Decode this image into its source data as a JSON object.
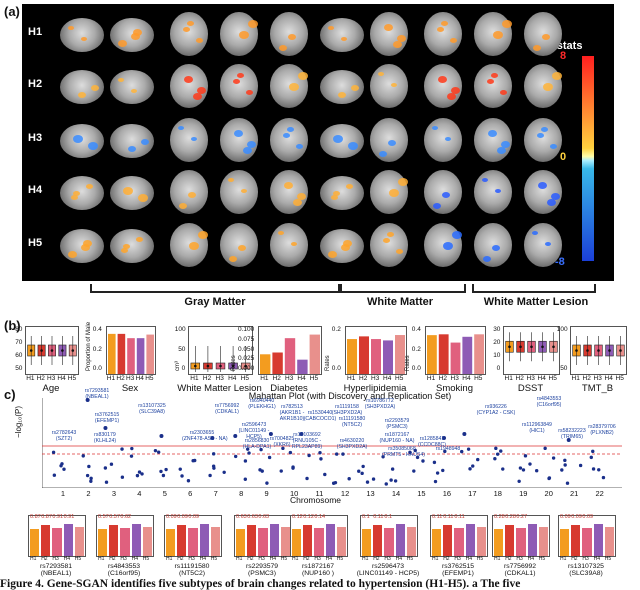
{
  "panel_labels": {
    "a": "(a)",
    "b": "(b)",
    "c": "c)"
  },
  "panel_a": {
    "rows": [
      "H1",
      "H2",
      "H3",
      "H4",
      "H5"
    ],
    "colorbar": {
      "title": "T-stats",
      "max": "8",
      "mid": "0",
      "min": "-8",
      "colors": [
        "#ff1f1f",
        "#ffd23f",
        "#38b8e8",
        "#1b3fd8"
      ]
    },
    "regions": [
      "Gray Matter",
      "White Matter",
      "White Matter Lesion"
    ]
  },
  "panel_b": {
    "group_ticks": [
      "H1",
      "H2",
      "H3",
      "H4",
      "H5"
    ],
    "plots": [
      {
        "label": "Age",
        "kind": "box",
        "yticks": [
          "50",
          "60",
          "70",
          "80"
        ],
        "ylabel": ""
      },
      {
        "label": "Sex",
        "kind": "bar",
        "yticks": [
          "0.0",
          "0.2",
          "0.4"
        ],
        "ylabel": "Proportion of Male"
      },
      {
        "label": "White Matter Lesion",
        "kind": "box",
        "yticks": [
          "0",
          "50",
          "100"
        ],
        "ylabel": "cm³"
      },
      {
        "label": "Diabetes",
        "kind": "bar",
        "yticks": [
          "0.000",
          "0.025",
          "0.050",
          "0.075",
          "0.100"
        ],
        "ylabel": "Rates"
      },
      {
        "label": "Hyperlipidemia",
        "kind": "bar",
        "yticks": [
          "0.0",
          "0.2"
        ],
        "ylabel": "Rates"
      },
      {
        "label": "Smoking",
        "kind": "bar",
        "yticks": [
          "0.0",
          "0.2",
          "0.4"
        ],
        "ylabel": "Rates"
      },
      {
        "label": "DSST",
        "kind": "box",
        "yticks": [
          "0",
          "10",
          "20",
          "30"
        ],
        "ylabel": ""
      },
      {
        "label": "TMT_B",
        "kind": "box",
        "yticks": [
          "50",
          "100"
        ],
        "ylabel": ""
      }
    ],
    "colors": [
      "#f39c1f",
      "#d73a2f",
      "#e0607e",
      "#8e5bb5",
      "#e8908c"
    ]
  },
  "panel_c": {
    "title": "Mahattan Plot (with Discovery and Replication Set)",
    "ylabel": "−log₁₀(P)",
    "xlabel": "Chromosome",
    "chromosomes": [
      "1",
      "2",
      "3",
      "4",
      "5",
      "6",
      "7",
      "8",
      "9",
      "10",
      "11",
      "12",
      "13",
      "14",
      "15",
      "16",
      "17",
      "18",
      "19",
      "20",
      "21",
      "22"
    ],
    "snp_labels": [
      "rs7293581\n(NBEAL1)",
      "rs2782643\n(SZT2)",
      "rs3762515\n(EFEMP1)",
      "rs13107325\n(SLC39A8)",
      "rs830179\n(KLHL24)",
      "rs2303655\n(ZNF478-AS1 - NA)",
      "rs7756992\n(CDKAL1)",
      "rs6940440\n(PLEKHG1)",
      "rs2596473\n(LINC01149 -\nHCP5)",
      "rs2856830\n(HLA-DPA1)",
      "rs782513\n(AKR1B1 -\nAKR1B10)",
      "rs7004825\n(XKR6)",
      "rs1530440\n(CABCOCO1)",
      "rs10103692\n(RNU105C -\nRPL23AP89)",
      "rs1119158\n(SH3PXD2A)",
      "rs11191580\n(NT5C2)",
      "rs4630220\n(SH3PXD2A)",
      "rs10786772\n(SH3PXD2A)",
      "rs2293579\n(PSMC3)",
      "rs1872167\n(NUP160 - NA)",
      "rs35085068\n(PRMT5 - HAUS4)",
      "rs1285841\n(CCDC88C)",
      "rs1948948",
      "rs936226\n(CYP1A2 - CSK)",
      "rs4843553\n(C16orf95)",
      "rs112963849\n(HIC1)",
      "rs58232223\n(TRIM65)",
      "rs28379706\n(PLXNB2)"
    ]
  },
  "mini_bars": [
    {
      "snp": "rs7293581",
      "gene": "(NBEAL1)",
      "values": [
        "0.87",
        "0.87",
        "0.91",
        "0.91"
      ]
    },
    {
      "snp": "rs4843553",
      "gene": "(C16orf95)",
      "values": [
        "0.57",
        "0.57",
        "0.62"
      ]
    },
    {
      "snp": "rs11191580",
      "gene": "(NT5C2)",
      "values": [
        "0.09",
        "0.09",
        "0.09"
      ]
    },
    {
      "snp": "rs2293579",
      "gene": "(PSMC3)",
      "values": [
        "0.63",
        "0.63",
        "0.63"
      ]
    },
    {
      "snp": "rs1872167",
      "gene": "(NUP160 )",
      "values": [
        "0.12",
        "0.12",
        "0.14"
      ]
    },
    {
      "snp": "rs2596473",
      "gene": "(LINC01149 - HCP5)",
      "values": [
        "0.1",
        "0.11",
        "0.1"
      ]
    },
    {
      "snp": "rs3762515",
      "gene": "(EFEMP1)",
      "values": [
        "0.11",
        "0.11",
        "0.11"
      ]
    },
    {
      "snp": "rs7756992",
      "gene": "(CDKAL1)",
      "values": [
        "0.28",
        "0.28",
        "0.27"
      ]
    },
    {
      "snp": "rs13107325",
      "gene": "(SLC39A8)",
      "values": [
        "0.09",
        "0.09",
        "0.09"
      ]
    }
  ],
  "mini_ticks": [
    "H1",
    "H2",
    "H3",
    "H4",
    "H5"
  ],
  "caption": "Figure 4. Gene-SGAN identifies five subtypes of brain changes related to hypertension (H1-H5). a The five"
}
